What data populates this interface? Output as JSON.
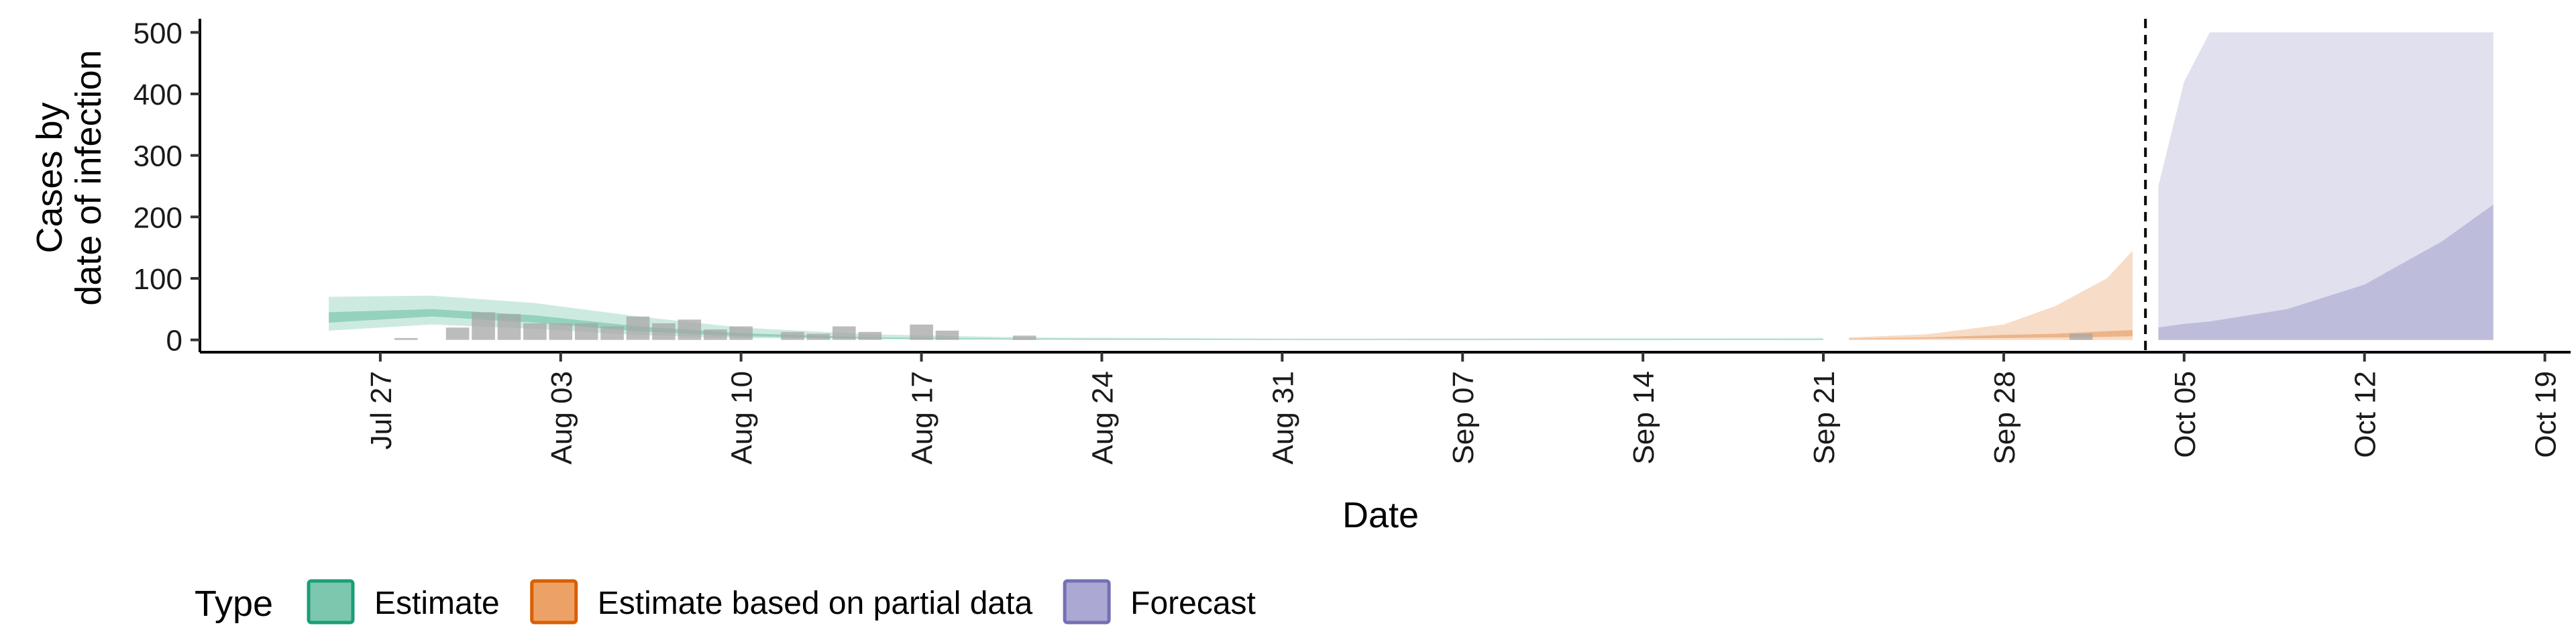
{
  "chart_data": {
    "type": "area",
    "xlabel": "Date",
    "ylabel_lines": [
      "Cases by",
      "date of infection"
    ],
    "ylim": [
      -20,
      520
    ],
    "yticks": [
      0,
      100,
      200,
      300,
      400,
      500
    ],
    "xlim": [
      "2020-07-20",
      "2020-10-20"
    ],
    "xticks": [
      {
        "date": "2020-07-27",
        "label": "Jul 27"
      },
      {
        "date": "2020-08-03",
        "label": "Aug 03"
      },
      {
        "date": "2020-08-10",
        "label": "Aug 10"
      },
      {
        "date": "2020-08-17",
        "label": "Aug 17"
      },
      {
        "date": "2020-08-24",
        "label": "Aug 24"
      },
      {
        "date": "2020-08-31",
        "label": "Aug 31"
      },
      {
        "date": "2020-09-07",
        "label": "Sep 07"
      },
      {
        "date": "2020-09-14",
        "label": "Sep 14"
      },
      {
        "date": "2020-09-21",
        "label": "Sep 21"
      },
      {
        "date": "2020-09-28",
        "label": "Sep 28"
      },
      {
        "date": "2020-10-05",
        "label": "Oct 05"
      },
      {
        "date": "2020-10-12",
        "label": "Oct 12"
      },
      {
        "date": "2020-10-19",
        "label": "Oct 19"
      }
    ],
    "forecast_start": "2020-10-03",
    "observed_cases": [
      {
        "date": "2020-07-28",
        "value": 3
      },
      {
        "date": "2020-07-30",
        "value": 20
      },
      {
        "date": "2020-07-31",
        "value": 45
      },
      {
        "date": "2020-08-01",
        "value": 42
      },
      {
        "date": "2020-08-02",
        "value": 27
      },
      {
        "date": "2020-08-03",
        "value": 27
      },
      {
        "date": "2020-08-04",
        "value": 27
      },
      {
        "date": "2020-08-05",
        "value": 22
      },
      {
        "date": "2020-08-06",
        "value": 38
      },
      {
        "date": "2020-08-07",
        "value": 27
      },
      {
        "date": "2020-08-08",
        "value": 33
      },
      {
        "date": "2020-08-09",
        "value": 17
      },
      {
        "date": "2020-08-10",
        "value": 22
      },
      {
        "date": "2020-08-12",
        "value": 13
      },
      {
        "date": "2020-08-13",
        "value": 10
      },
      {
        "date": "2020-08-14",
        "value": 22
      },
      {
        "date": "2020-08-15",
        "value": 13
      },
      {
        "date": "2020-08-17",
        "value": 25
      },
      {
        "date": "2020-08-18",
        "value": 15
      },
      {
        "date": "2020-08-21",
        "value": 7
      },
      {
        "date": "2020-10-01",
        "value": 10
      }
    ],
    "series": [
      {
        "name": "Estimate",
        "color": "#1b9e77",
        "points": [
          {
            "date": "2020-07-25",
            "lo90": 15,
            "lo50": 28,
            "hi50": 45,
            "hi90": 70
          },
          {
            "date": "2020-07-29",
            "lo90": 25,
            "lo50": 38,
            "hi50": 50,
            "hi90": 72
          },
          {
            "date": "2020-08-02",
            "lo90": 18,
            "lo50": 28,
            "hi50": 40,
            "hi90": 60
          },
          {
            "date": "2020-08-06",
            "lo90": 8,
            "lo50": 14,
            "hi50": 22,
            "hi90": 38
          },
          {
            "date": "2020-08-10",
            "lo90": 3,
            "lo50": 6,
            "hi50": 11,
            "hi90": 20
          },
          {
            "date": "2020-08-15",
            "lo90": 1,
            "lo50": 2,
            "hi50": 4,
            "hi90": 9
          },
          {
            "date": "2020-08-21",
            "lo90": 0,
            "lo50": 1,
            "hi50": 2,
            "hi90": 4
          },
          {
            "date": "2020-09-01",
            "lo90": 0,
            "lo50": 0,
            "hi50": 1,
            "hi90": 2
          },
          {
            "date": "2020-09-20",
            "lo90": 0,
            "lo50": 0,
            "hi50": 1,
            "hi90": 3
          },
          {
            "date": "2020-09-21",
            "lo90": 0,
            "lo50": 0,
            "hi50": 1,
            "hi90": 3
          }
        ]
      },
      {
        "name": "Estimate based on partial data",
        "color": "#d95f02",
        "points": [
          {
            "date": "2020-09-22",
            "lo90": 0,
            "lo50": 1,
            "hi50": 2,
            "hi90": 4
          },
          {
            "date": "2020-09-25",
            "lo90": 0,
            "lo50": 2,
            "hi50": 4,
            "hi90": 9
          },
          {
            "date": "2020-09-28",
            "lo90": 0,
            "lo50": 3,
            "hi50": 8,
            "hi90": 25
          },
          {
            "date": "2020-09-30",
            "lo90": 0,
            "lo50": 4,
            "hi50": 10,
            "hi90": 55
          },
          {
            "date": "2020-10-02",
            "lo90": 0,
            "lo50": 5,
            "hi50": 14,
            "hi90": 100
          },
          {
            "date": "2020-10-03",
            "lo90": 0,
            "lo50": 6,
            "hi50": 16,
            "hi90": 145
          }
        ]
      },
      {
        "name": "Forecast",
        "color": "#7570b3",
        "points": [
          {
            "date": "2020-10-04",
            "lo90": 0,
            "lo50": 0,
            "hi50": 20,
            "hi90": 250
          },
          {
            "date": "2020-10-05",
            "lo90": 0,
            "lo50": 0,
            "hi50": 26,
            "hi90": 420
          },
          {
            "date": "2020-10-06",
            "lo90": 0,
            "lo50": 0,
            "hi50": 30,
            "hi90": 500
          },
          {
            "date": "2020-10-09",
            "lo90": 0,
            "lo50": 0,
            "hi50": 50,
            "hi90": 500
          },
          {
            "date": "2020-10-12",
            "lo90": 0,
            "lo50": 0,
            "hi50": 90,
            "hi90": 500
          },
          {
            "date": "2020-10-15",
            "lo90": 0,
            "lo50": 0,
            "hi50": 160,
            "hi90": 500
          },
          {
            "date": "2020-10-17",
            "lo90": 0,
            "lo50": 0,
            "hi50": 220,
            "hi90": 500
          }
        ]
      }
    ],
    "legend": {
      "title": "Type",
      "position": "bottom",
      "entries": [
        {
          "label": "Estimate",
          "fill": "#7cc7ae",
          "stroke": "#1b9e77"
        },
        {
          "label": "Estimate based on partial data",
          "fill": "#eca267",
          "stroke": "#d95f02"
        },
        {
          "label": "Forecast",
          "fill": "#aba8d3",
          "stroke": "#7570b3"
        }
      ]
    },
    "colors": {
      "observed_bar": "#a6a6a6",
      "forecast_line": "#000000"
    }
  }
}
